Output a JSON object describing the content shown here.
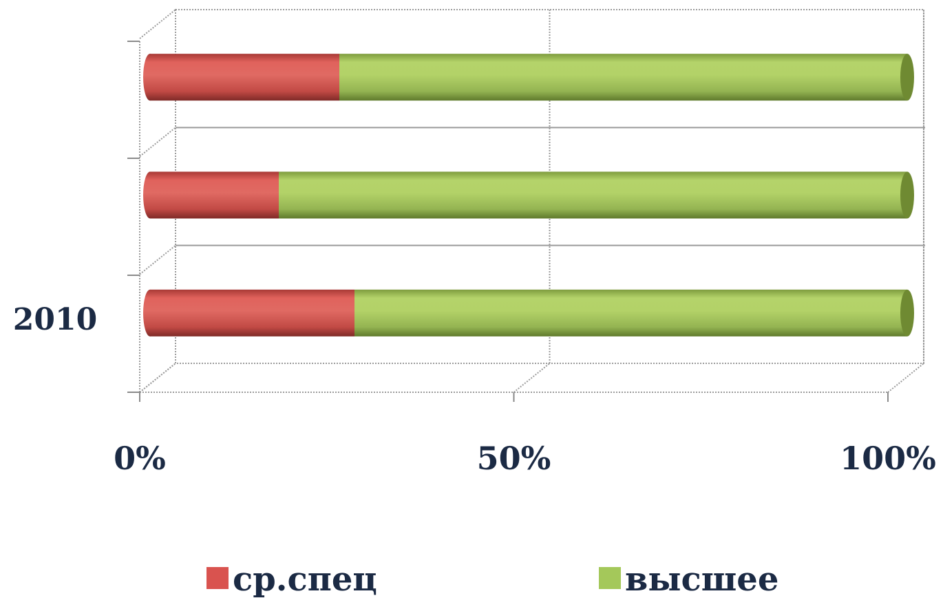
{
  "chart_data": {
    "type": "bar",
    "orientation": "horizontal",
    "stacking": "percent",
    "categories": [
      "",
      "",
      "2010"
    ],
    "series": [
      {
        "name": "ср.спец",
        "color": "#d9534f",
        "values": [
          25,
          17,
          27
        ]
      },
      {
        "name": "высшее",
        "color": "#a4c85a",
        "values": [
          75,
          83,
          73
        ]
      }
    ],
    "xlim": [
      0,
      100
    ],
    "x_ticks": [
      "0%",
      "50%",
      "100%"
    ],
    "grid": true,
    "legend": "bottom"
  }
}
